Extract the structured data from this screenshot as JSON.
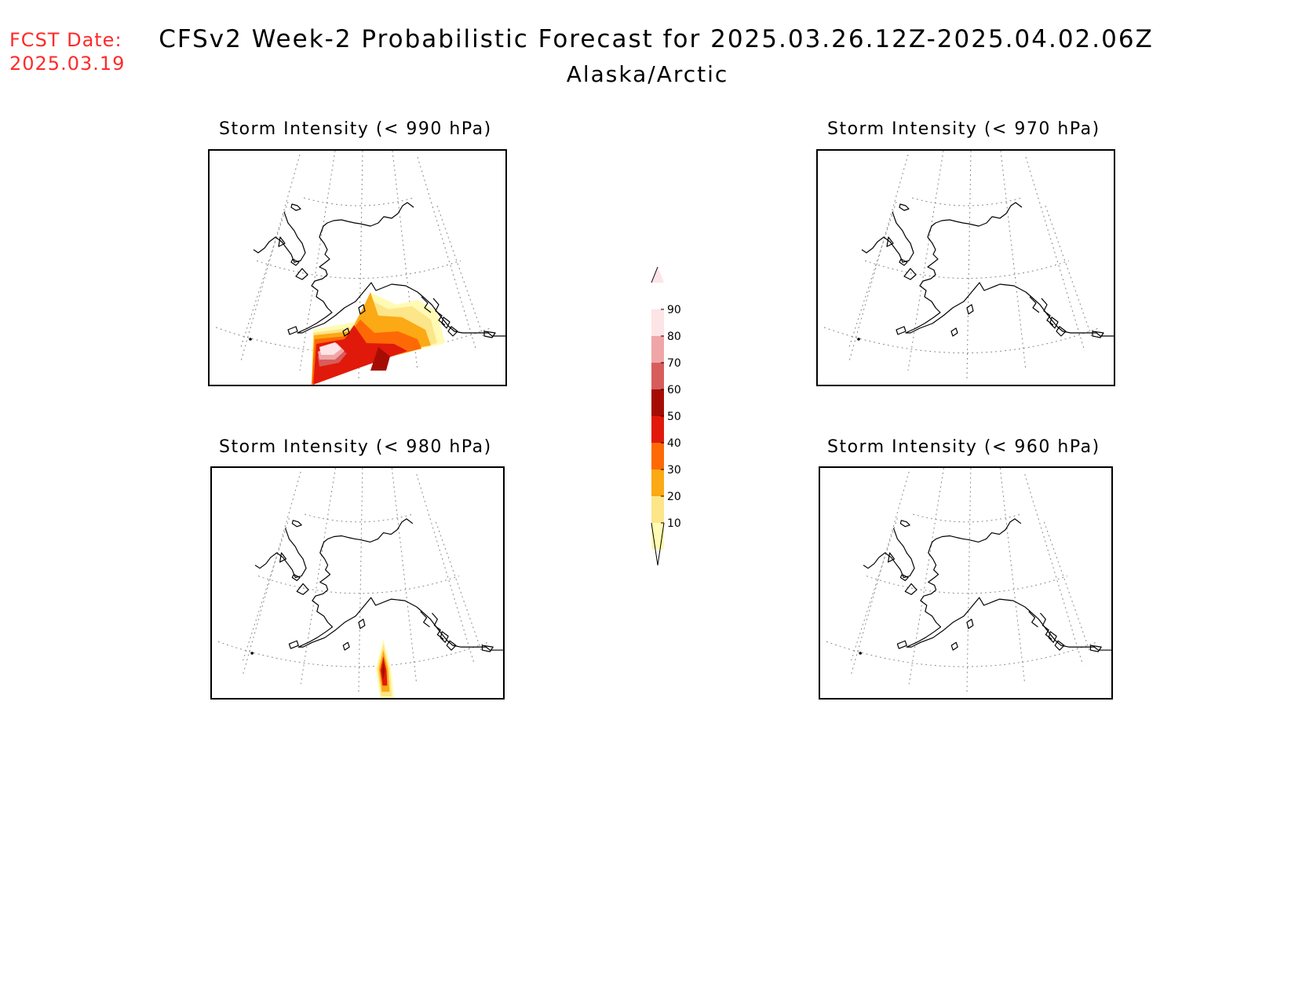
{
  "forecast_date": {
    "label": "FCST Date:",
    "value": "2025.03.19",
    "color": "#ff2a2a"
  },
  "title": "CFSv2 Week-2 Probabilistic Forecast for 2025.03.26.12Z-2025.04.02.06Z",
  "subtitle": "Alaska/Arctic",
  "panels": [
    {
      "id": "990",
      "title": "Storm Intensity (< 990 hPa)",
      "has_probability_area": true
    },
    {
      "id": "970",
      "title": "Storm Intensity (< 970 hPa)",
      "has_probability_area": false
    },
    {
      "id": "980",
      "title": "Storm Intensity (< 980 hPa)",
      "has_probability_area": true
    },
    {
      "id": "960",
      "title": "Storm Intensity (< 960 hPa)",
      "has_probability_area": false
    }
  ],
  "colorbar": {
    "levels": [
      "10",
      "20",
      "30",
      "40",
      "50",
      "60",
      "70",
      "80",
      "90"
    ],
    "colors": [
      "#fffbb4",
      "#fde58a",
      "#fba914",
      "#fd6a05",
      "#e1190a",
      "#a50d04",
      "#d75d5c",
      "#f0a5a7",
      "#fde4e6"
    ]
  }
}
